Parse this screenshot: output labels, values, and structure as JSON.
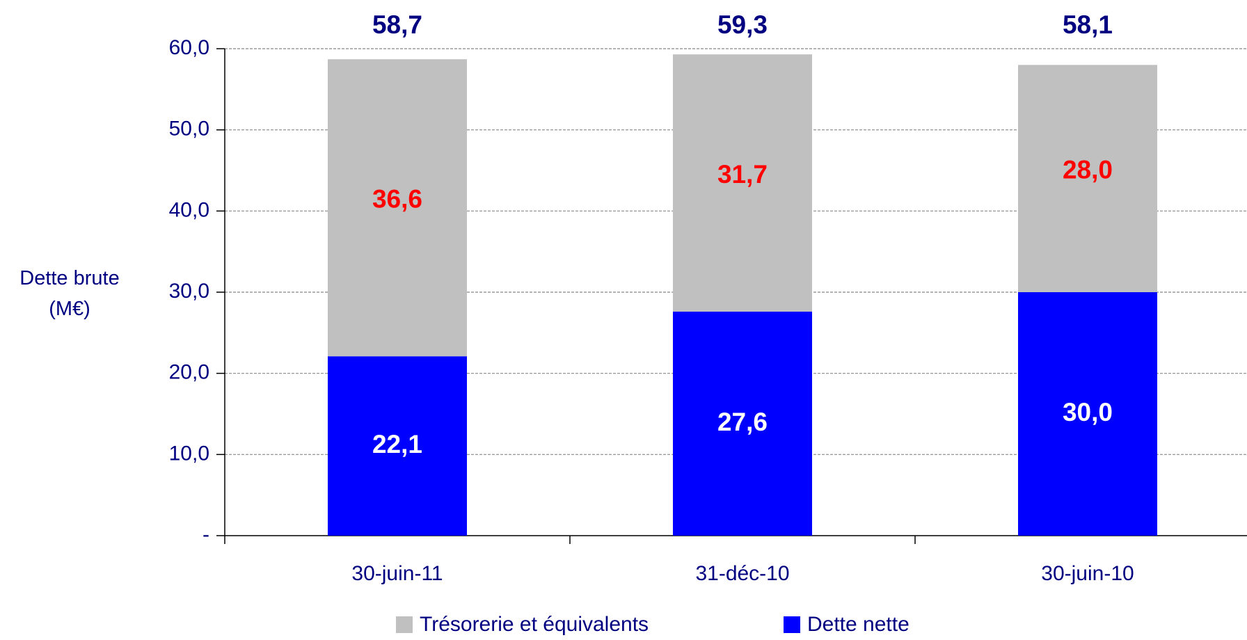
{
  "chart_data": {
    "type": "stacked-bar",
    "y_label": "Dette brute (M€)",
    "categories": [
      "30-juin-11",
      "31-déc-10",
      "30-juin-10"
    ],
    "series": [
      {
        "name": "Dette nette",
        "color": "#0000ff",
        "label_color": "#ffffff",
        "values": [
          22.1,
          27.6,
          30.0
        ],
        "value_labels": [
          "22,1",
          "27,6",
          "30,0"
        ]
      },
      {
        "name": "Trésorerie et équivalents",
        "color": "#c0c0c0",
        "label_color": "#ff0000",
        "values": [
          36.6,
          31.7,
          28.0
        ],
        "value_labels": [
          "36,6",
          "31,7",
          "28,0"
        ]
      }
    ],
    "totals": {
      "values": [
        58.7,
        59.3,
        58.1
      ],
      "value_labels": [
        "58,7",
        "59,3",
        "58,1"
      ],
      "color": "#000080"
    },
    "ylim": [
      0,
      60
    ],
    "yticks": [
      {
        "value": 0,
        "label": "-"
      },
      {
        "value": 10,
        "label": "10,0"
      },
      {
        "value": 20,
        "label": "20,0"
      },
      {
        "value": 30,
        "label": "30,0"
      },
      {
        "value": 40,
        "label": "40,0"
      },
      {
        "value": 50,
        "label": "50,0"
      },
      {
        "value": 60,
        "label": "60,0"
      }
    ],
    "grid": true
  }
}
